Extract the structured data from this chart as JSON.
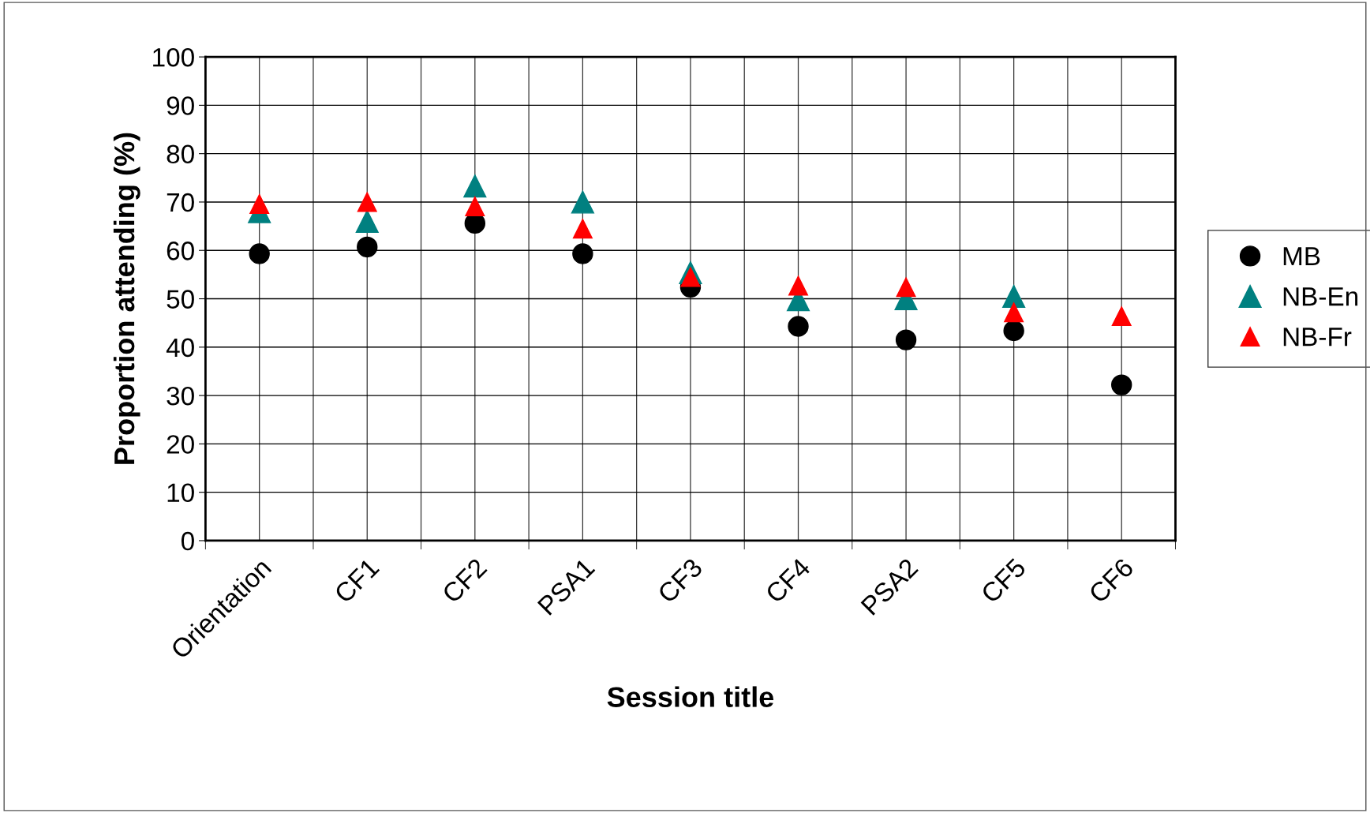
{
  "chart_data": {
    "type": "scatter",
    "xlabel": "Session title",
    "ylabel": "Proportion attending (%)",
    "categories": [
      "Orientation",
      "CF1",
      "CF2",
      "PSA1",
      "CF3",
      "CF4",
      "PSA2",
      "CF5",
      "CF6"
    ],
    "series": [
      {
        "name": "MB",
        "color": "#000000",
        "marker": "circle",
        "values": [
          59.3,
          60.7,
          65.6,
          59.3,
          52.4,
          44.3,
          41.5,
          43.4,
          32.2
        ]
      },
      {
        "name": "NB-En",
        "color": "#008080",
        "marker": "triangle",
        "values": [
          68,
          66,
          73.3,
          70,
          55.4,
          49.8,
          50,
          50.5,
          null
        ]
      },
      {
        "name": "NB-Fr",
        "color": "#ff0000",
        "marker": "triangle",
        "values": [
          69.6,
          70,
          69.1,
          64.5,
          54.5,
          52.7,
          52.4,
          47.2,
          46.4
        ]
      }
    ],
    "ylim": [
      0,
      100
    ],
    "yticks": [
      0,
      10,
      20,
      30,
      40,
      50,
      60,
      70,
      80,
      90,
      100
    ],
    "grid": true,
    "legend": "right"
  }
}
